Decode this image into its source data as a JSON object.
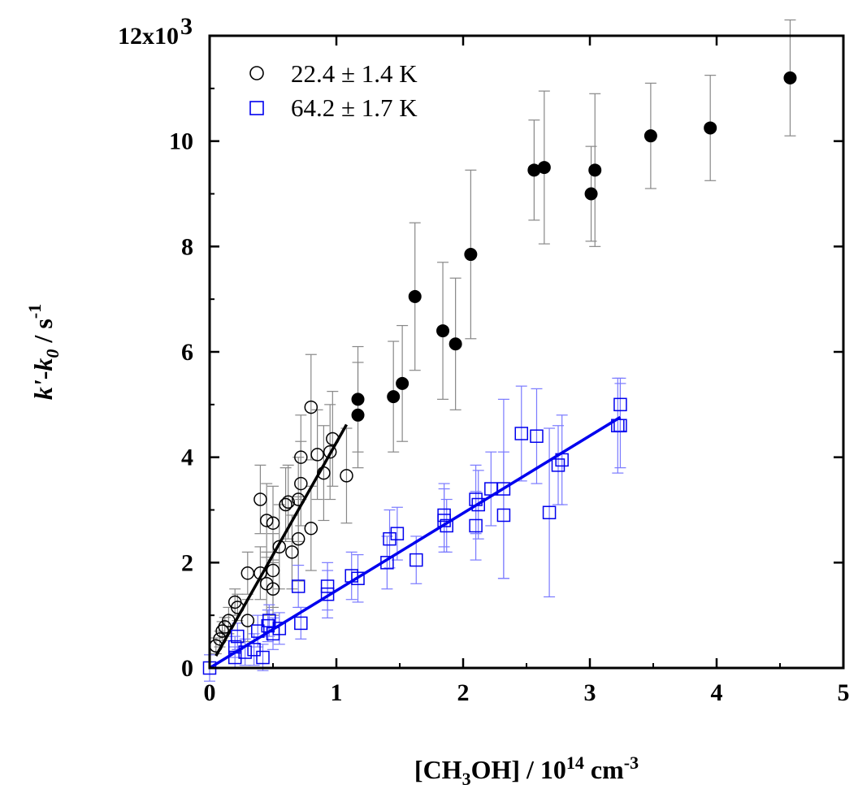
{
  "chart_data": {
    "type": "scatter",
    "x_axis": {
      "range": [
        0,
        5
      ],
      "ticks": [
        0,
        1,
        2,
        3,
        4,
        5
      ],
      "label_parts": [
        "[CH",
        "3",
        "OH] / 10",
        "14",
        " cm",
        "-3"
      ]
    },
    "y_axis": {
      "range": [
        0,
        12000
      ],
      "ticks": [
        0,
        2000,
        4000,
        6000,
        8000,
        10000,
        12000
      ],
      "tick_labels": [
        "0",
        "2",
        "4",
        "6",
        "8",
        "10",
        "12x10"
      ],
      "top_tick_exponent": "3",
      "label_parts": [
        "k'",
        "-",
        "k",
        "0",
        " / s",
        "-1"
      ]
    },
    "grid": false,
    "legend_position": "top-left",
    "colors": {
      "black": "#000000",
      "blue": "#0000ee",
      "errorbar_gray": "#888888",
      "errorbar_blue": "#7a7aff"
    },
    "series": [
      {
        "name": "22.4 ± 1.4 K",
        "marker": "open-circle",
        "color": "#000000",
        "points": [
          [
            0.05,
            420,
            150
          ],
          [
            0.08,
            550,
            150
          ],
          [
            0.1,
            700,
            180
          ],
          [
            0.12,
            780,
            180
          ],
          [
            0.15,
            900,
            250
          ],
          [
            0.2,
            1250,
            250
          ],
          [
            0.22,
            1150,
            250
          ],
          [
            0.3,
            900,
            400
          ],
          [
            0.3,
            1800,
            400
          ],
          [
            0.4,
            1800,
            500
          ],
          [
            0.4,
            3200,
            650
          ],
          [
            0.45,
            1600,
            600
          ],
          [
            0.45,
            2800,
            700
          ],
          [
            0.5,
            1500,
            500
          ],
          [
            0.5,
            2750,
            700
          ],
          [
            0.5,
            1850,
            700
          ],
          [
            0.55,
            2300,
            800
          ],
          [
            0.6,
            3100,
            700
          ],
          [
            0.62,
            3150,
            700
          ],
          [
            0.65,
            2200,
            700
          ],
          [
            0.7,
            2450,
            800
          ],
          [
            0.7,
            3200,
            800
          ],
          [
            0.72,
            4000,
            800
          ],
          [
            0.72,
            3500,
            800
          ],
          [
            0.8,
            2650,
            800
          ],
          [
            0.8,
            4950,
            1000
          ],
          [
            0.85,
            4050,
            850
          ],
          [
            0.9,
            3700,
            900
          ],
          [
            0.95,
            4100,
            900
          ],
          [
            0.97,
            4350,
            900
          ],
          [
            1.08,
            3650,
            900
          ]
        ]
      },
      {
        "marker": "filled-circle",
        "color": "#000000",
        "points": [
          [
            1.17,
            5100,
            1000
          ],
          [
            1.17,
            4800,
            1000
          ],
          [
            1.45,
            5150,
            1050
          ],
          [
            1.52,
            5400,
            1100
          ],
          [
            1.62,
            7050,
            1400
          ],
          [
            1.84,
            6400,
            1300
          ],
          [
            1.94,
            6150,
            1250
          ],
          [
            2.06,
            7850,
            1600
          ],
          [
            2.56,
            9450,
            950
          ],
          [
            2.64,
            9500,
            1450
          ],
          [
            3.01,
            9000,
            900
          ],
          [
            3.04,
            9450,
            1450
          ],
          [
            3.48,
            10100,
            1000
          ],
          [
            3.95,
            10250,
            1000
          ],
          [
            4.58,
            11200,
            1100
          ]
        ]
      },
      {
        "name": "64.2 ± 1.7 K",
        "marker": "open-square",
        "color": "#0000ee",
        "points": [
          [
            0.0,
            0,
            250
          ],
          [
            0.2,
            200,
            200
          ],
          [
            0.2,
            400,
            200
          ],
          [
            0.22,
            600,
            250
          ],
          [
            0.28,
            300,
            250
          ],
          [
            0.35,
            350,
            300
          ],
          [
            0.38,
            700,
            300
          ],
          [
            0.42,
            200,
            250
          ],
          [
            0.46,
            800,
            300
          ],
          [
            0.47,
            900,
            300
          ],
          [
            0.5,
            650,
            300
          ],
          [
            0.55,
            750,
            300
          ],
          [
            0.7,
            1550,
            400
          ],
          [
            0.72,
            850,
            300
          ],
          [
            0.93,
            1400,
            450
          ],
          [
            0.93,
            1550,
            450
          ],
          [
            1.12,
            1750,
            450
          ],
          [
            1.17,
            1700,
            450
          ],
          [
            1.4,
            2000,
            500
          ],
          [
            1.42,
            2450,
            550
          ],
          [
            1.48,
            2550,
            500
          ],
          [
            1.63,
            2050,
            450
          ],
          [
            1.85,
            2900,
            600
          ],
          [
            1.85,
            2800,
            600
          ],
          [
            1.87,
            2700,
            500
          ],
          [
            2.1,
            2700,
            650
          ],
          [
            2.1,
            3200,
            650
          ],
          [
            2.12,
            3100,
            650
          ],
          [
            2.22,
            3400,
            700
          ],
          [
            2.32,
            2900,
            1200
          ],
          [
            2.32,
            3400,
            1700
          ],
          [
            2.46,
            4450,
            900
          ],
          [
            2.58,
            4400,
            900
          ],
          [
            2.68,
            2950,
            1600
          ],
          [
            2.75,
            3850,
            750
          ],
          [
            2.78,
            3950,
            850
          ],
          [
            3.22,
            4600,
            900
          ],
          [
            3.24,
            5000,
            500
          ],
          [
            3.24,
            4600,
            800
          ]
        ]
      }
    ],
    "fit_lines": [
      {
        "color": "#000000",
        "x": [
          0.05,
          1.08
        ],
        "y": [
          230,
          4620
        ]
      },
      {
        "color": "#0000ee",
        "x": [
          0.0,
          3.24
        ],
        "y": [
          0,
          4760
        ]
      }
    ],
    "legend": [
      {
        "label": "22.4 ± 1.4 K",
        "marker": "open-circle",
        "color": "#000000"
      },
      {
        "label": "64.2 ± 1.7 K",
        "marker": "open-square",
        "color": "#0000ee"
      }
    ]
  }
}
